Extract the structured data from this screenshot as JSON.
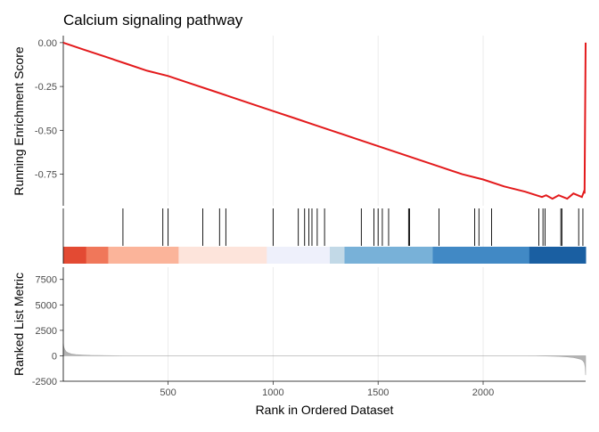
{
  "chart_data": [
    {
      "type": "line",
      "title": "Calcium signaling pathway",
      "ylabel": "Running Enrichment Score",
      "ylim": [
        -0.93,
        0.04
      ],
      "yticks": [
        0.0,
        -0.25,
        -0.5,
        -0.75
      ],
      "ytick_labels": [
        "0.00",
        "-0.25",
        "-0.50",
        "-0.75"
      ],
      "x_gridlines": [
        500,
        1000,
        1500,
        2000
      ],
      "grid": true,
      "series": [
        {
          "color": "#e31a1c",
          "x": [
            1,
            100,
            200,
            300,
            400,
            500,
            600,
            700,
            800,
            900,
            1000,
            1100,
            1200,
            1300,
            1400,
            1500,
            1600,
            1700,
            1800,
            1900,
            2000,
            2100,
            2200,
            2280,
            2300,
            2330,
            2360,
            2400,
            2430,
            2470,
            2480,
            2483,
            2485,
            2488
          ],
          "y": [
            0.0,
            -0.04,
            -0.08,
            -0.12,
            -0.16,
            -0.19,
            -0.23,
            -0.27,
            -0.31,
            -0.35,
            -0.39,
            -0.43,
            -0.47,
            -0.51,
            -0.55,
            -0.59,
            -0.63,
            -0.67,
            -0.71,
            -0.75,
            -0.78,
            -0.82,
            -0.85,
            -0.88,
            -0.87,
            -0.89,
            -0.87,
            -0.89,
            -0.86,
            -0.88,
            -0.85,
            -0.86,
            -0.5,
            0.0
          ]
        }
      ]
    },
    {
      "type": "barcode",
      "hits": [
        285,
        475,
        500,
        665,
        745,
        775,
        1000,
        1120,
        1150,
        1170,
        1185,
        1210,
        1245,
        1420,
        1480,
        1500,
        1520,
        1550,
        1645,
        1650,
        1790,
        1960,
        1980,
        2040,
        2265,
        2285,
        2295,
        2370,
        2375,
        2455,
        2475
      ],
      "gradient": [
        {
          "from": 1,
          "to": 110,
          "color": "#e34a33"
        },
        {
          "from": 110,
          "to": 215,
          "color": "#f0775a"
        },
        {
          "from": 215,
          "to": 550,
          "color": "#fbb49a"
        },
        {
          "from": 550,
          "to": 970,
          "color": "#fde4db"
        },
        {
          "from": 970,
          "to": 1270,
          "color": "#eef0fb"
        },
        {
          "from": 1270,
          "to": 1340,
          "color": "#c2d9e7"
        },
        {
          "from": 1340,
          "to": 1760,
          "color": "#78b1d8"
        },
        {
          "from": 1760,
          "to": 2220,
          "color": "#4189c5"
        },
        {
          "from": 2220,
          "to": 2488,
          "color": "#1a5fa2"
        }
      ]
    },
    {
      "type": "area",
      "xlabel": "Rank in Ordered Dataset",
      "ylabel": "Ranked List Metric",
      "ylim": [
        -2500,
        8700
      ],
      "yticks": [
        -2500,
        0,
        2500,
        5000,
        7500
      ],
      "ytick_labels": [
        "-2500",
        "0",
        "2500",
        "5000",
        "7500"
      ],
      "xlim": [
        1,
        2488
      ],
      "xticks": [
        500,
        1000,
        1500,
        2000
      ],
      "xtick_labels": [
        "500",
        "1000",
        "1500",
        "2000"
      ],
      "color": "#b3b3b3",
      "series": [
        {
          "x": [
            1,
            3,
            6,
            10,
            15,
            25,
            40,
            60,
            90,
            130,
            200,
            280,
            285,
            2200,
            2250,
            2300,
            2360,
            2400,
            2430,
            2450,
            2465,
            2475,
            2482,
            2486,
            2488
          ],
          "y": [
            1200,
            900,
            700,
            550,
            400,
            280,
            180,
            120,
            80,
            50,
            20,
            5,
            0,
            0,
            -5,
            -20,
            -60,
            -110,
            -180,
            -260,
            -350,
            -480,
            -700,
            -1100,
            -1900
          ]
        }
      ]
    }
  ]
}
